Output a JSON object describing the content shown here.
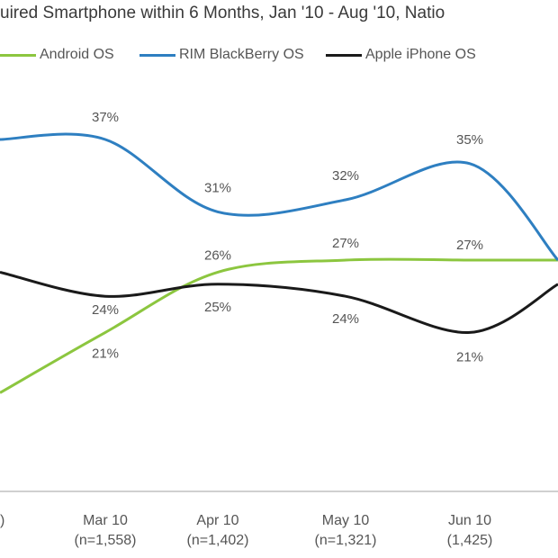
{
  "chart_data": {
    "type": "line",
    "title": "uired Smartphone within 6 Months, Jan '10 - Aug '10, Natio",
    "categories": [
      "",
      "Mar 10",
      "Apr 10",
      "May  10",
      "Jun 10",
      ""
    ],
    "category_sublabels": [
      ")",
      "(n=1,558)",
      "(n=1,402)",
      "(n=1,321)",
      "(1,425)",
      ""
    ],
    "ylim": [
      10,
      42
    ],
    "grid": false,
    "legend_position": "top",
    "series": [
      {
        "name": "Android OS",
        "color": "#8cc63f",
        "values": [
          16,
          21,
          26,
          27,
          27,
          27
        ],
        "labels": [
          "",
          "21%",
          "26%",
          "27%",
          "27%",
          ""
        ]
      },
      {
        "name": "RIM BlackBerry OS",
        "color": "#2e7fc1",
        "values": [
          37,
          37,
          31,
          32,
          35,
          27
        ],
        "labels": [
          "",
          "37%",
          "31%",
          "32%",
          "35%",
          ""
        ]
      },
      {
        "name": "Apple iPhone OS",
        "color": "#1a1a1a",
        "values": [
          26,
          24,
          25,
          24,
          21,
          25
        ],
        "labels": [
          "",
          "24%",
          "25%",
          "24%",
          "21%",
          ""
        ]
      }
    ]
  }
}
